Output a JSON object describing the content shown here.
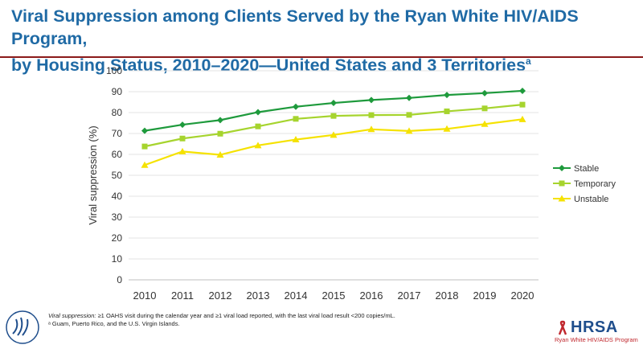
{
  "header": {
    "title_line1": "Viral Suppression among Clients Served by the Ryan White HIV/AIDS Program,",
    "title_line2": "by Housing Status, 2010–2020—United States and 3 Territories",
    "title_superscript": "a"
  },
  "chart_data": {
    "type": "line",
    "x": [
      "2010",
      "2011",
      "2012",
      "2013",
      "2014",
      "2015",
      "2016",
      "2017",
      "2018",
      "2019",
      "2020"
    ],
    "ylabel": "Viral suppression (%)",
    "ylim": [
      0,
      100
    ],
    "yticks": [
      0,
      10,
      20,
      30,
      40,
      50,
      60,
      70,
      80,
      90,
      100
    ],
    "grid": true,
    "legend_position": "right",
    "series": [
      {
        "name": "Stable",
        "color": "#1e9a3c",
        "marker": "diamond",
        "values": [
          71.3,
          74.2,
          76.4,
          80.2,
          82.8,
          84.6,
          86.0,
          87.0,
          88.4,
          89.3,
          90.4
        ]
      },
      {
        "name": "Temporary",
        "color": "#a6d42e",
        "marker": "square",
        "values": [
          63.8,
          67.6,
          69.9,
          73.4,
          77.0,
          78.4,
          78.8,
          78.9,
          80.6,
          82.0,
          83.8
        ]
      },
      {
        "name": "Unstable",
        "color": "#f5e200",
        "marker": "triangle",
        "values": [
          54.9,
          61.4,
          59.8,
          64.3,
          67.1,
          69.3,
          72.0,
          71.2,
          72.2,
          74.5,
          76.8
        ]
      }
    ]
  },
  "footnote": {
    "line1_lead": "Viral suppression:",
    "line1_rest": " ≥1 OAHS visit during the calendar year and ≥1 viral load reported, with the last viral load result <200 copies/mL.",
    "line2": "ᵃ Guam, Puerto Rico, and the U.S. Virgin Islands."
  },
  "branding": {
    "hrsa_word": "HRSA",
    "hrsa_program": "Ryan White HIV/AIDS Program",
    "hrsa_color": "#1f4e8c",
    "hrsa_sub_color": "#c0272d"
  }
}
